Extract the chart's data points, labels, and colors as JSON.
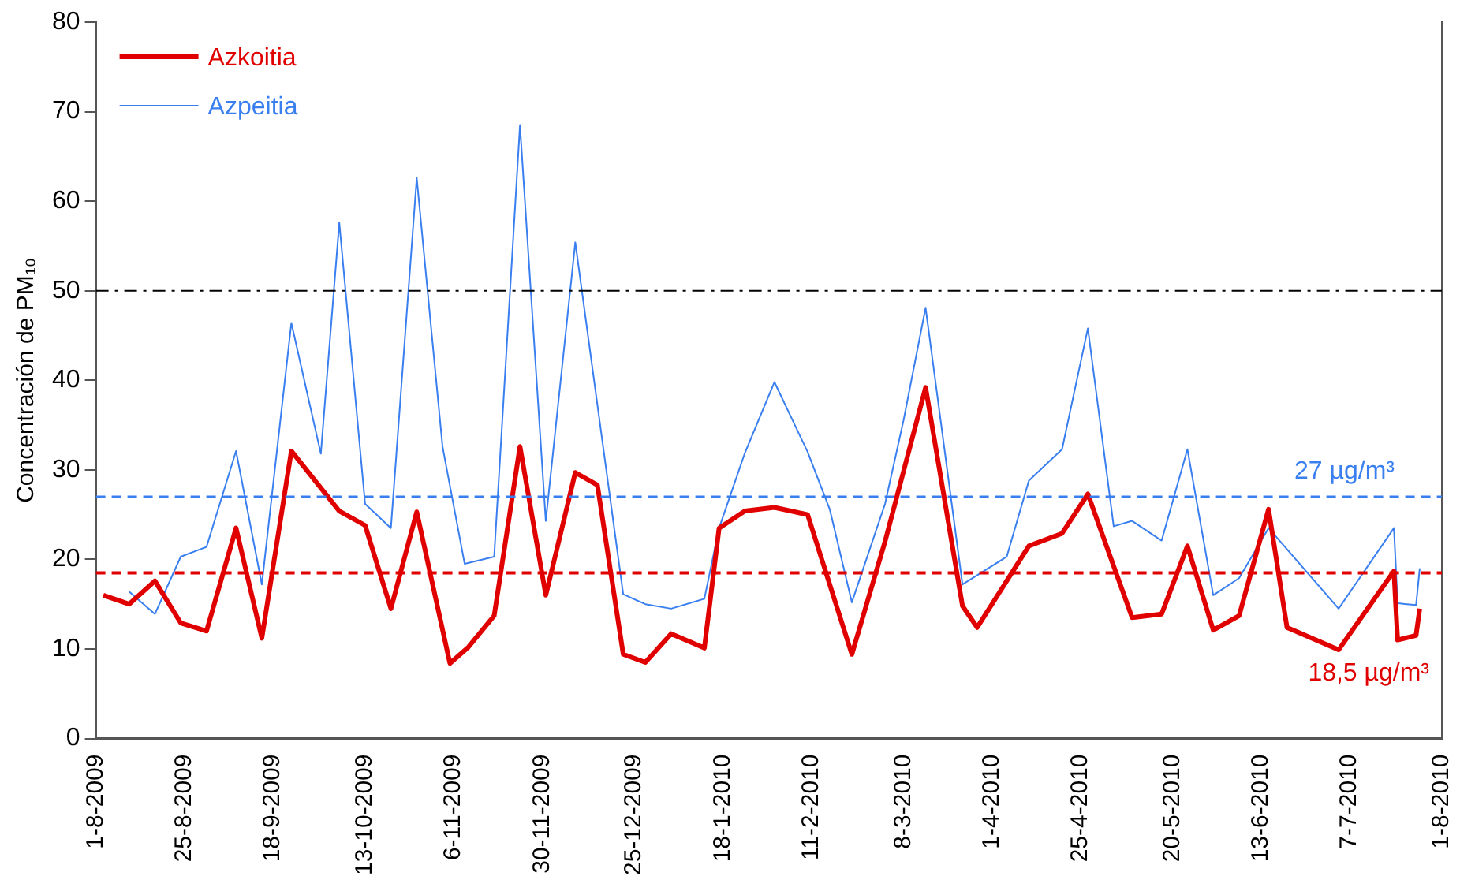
{
  "chart_data": {
    "type": "line",
    "ylabel": "Concentración de PM₁₀",
    "legend": "top left",
    "grid": false,
    "marker": "none",
    "xlim": [
      "2009-08-01",
      "2010-08-01"
    ],
    "xticks": [
      {
        "value": "2009-08-01",
        "label": "1-8-2009"
      },
      {
        "value": "2009-08-25",
        "label": "25-8-2009"
      },
      {
        "value": "2009-09-18",
        "label": "18-9-2009"
      },
      {
        "value": "2009-10-13",
        "label": "13-10-2009"
      },
      {
        "value": "2009-11-06",
        "label": "6-11-2009"
      },
      {
        "value": "2009-11-30",
        "label": "30-11-2009"
      },
      {
        "value": "2009-12-25",
        "label": "25-12-2009"
      },
      {
        "value": "2010-01-18",
        "label": "18-1-2010"
      },
      {
        "value": "2010-02-11",
        "label": "11-2-2010"
      },
      {
        "value": "2010-03-08",
        "label": "8-3-2010"
      },
      {
        "value": "2010-04-01",
        "label": "1-4-2010"
      },
      {
        "value": "2010-04-25",
        "label": "25-4-2010"
      },
      {
        "value": "2010-05-20",
        "label": "20-5-2010"
      },
      {
        "value": "2010-06-13",
        "label": "13-6-2010"
      },
      {
        "value": "2010-07-07",
        "label": "7-7-2010"
      },
      {
        "value": "2010-08-01",
        "label": "1-8-2010"
      }
    ],
    "ylim": [
      0,
      80
    ],
    "yticks": [
      0,
      10,
      20,
      30,
      40,
      50,
      60,
      70,
      80
    ],
    "series": [
      {
        "name": "Azkoitia",
        "color": "#e00000",
        "x": [
          "2009-08-03",
          "2009-08-10",
          "2009-08-17",
          "2009-08-24",
          "2009-08-31",
          "2009-09-08",
          "2009-09-15",
          "2009-09-23",
          "2009-10-06",
          "2009-10-13",
          "2009-10-20",
          "2009-10-27",
          "2009-11-05",
          "2009-11-10",
          "2009-11-17",
          "2009-11-24",
          "2009-12-01",
          "2009-12-09",
          "2009-12-15",
          "2009-12-22",
          "2009-12-28",
          "2010-01-04",
          "2010-01-13",
          "2010-01-17",
          "2010-01-24",
          "2010-02-01",
          "2010-02-10",
          "2010-02-22",
          "2010-03-03",
          "2010-03-14",
          "2010-03-24",
          "2010-03-28",
          "2010-04-11",
          "2010-04-20",
          "2010-04-27",
          "2010-05-09",
          "2010-05-17",
          "2010-05-24",
          "2010-05-31",
          "2010-06-07",
          "2010-06-15",
          "2010-06-20",
          "2010-07-04",
          "2010-07-19",
          "2010-07-20",
          "2010-07-25",
          "2010-07-26"
        ],
        "values": [
          16.0,
          15.0,
          17.6,
          12.9,
          12.0,
          23.5,
          11.2,
          32.1,
          25.4,
          23.8,
          14.5,
          25.3,
          8.4,
          10.2,
          13.7,
          32.6,
          16.0,
          29.7,
          28.3,
          9.4,
          8.5,
          11.7,
          10.1,
          23.5,
          25.4,
          25.8,
          25.0,
          9.4,
          22.0,
          39.2,
          14.8,
          12.4,
          21.5,
          22.9,
          27.3,
          13.5,
          13.9,
          21.5,
          12.1,
          13.7,
          25.6,
          12.4,
          9.9,
          18.7,
          11.0,
          11.5,
          14.5
        ]
      },
      {
        "name": "Azpeitia",
        "color": "#3a7ff0",
        "x": [
          "2009-08-10",
          "2009-08-17",
          "2009-08-24",
          "2009-08-31",
          "2009-09-08",
          "2009-09-15",
          "2009-09-23",
          "2009-10-01",
          "2009-10-06",
          "2009-10-13",
          "2009-10-20",
          "2009-10-27",
          "2009-11-03",
          "2009-11-09",
          "2009-11-17",
          "2009-11-24",
          "2009-12-01",
          "2009-12-09",
          "2009-12-22",
          "2009-12-28",
          "2010-01-04",
          "2010-01-13",
          "2010-01-17",
          "2010-01-24",
          "2010-02-01",
          "2010-02-10",
          "2010-02-16",
          "2010-02-22",
          "2010-03-03",
          "2010-03-08",
          "2010-03-14",
          "2010-03-24",
          "2010-04-05",
          "2010-04-11",
          "2010-04-20",
          "2010-04-27",
          "2010-05-04",
          "2010-05-09",
          "2010-05-17",
          "2010-05-24",
          "2010-05-31",
          "2010-06-07",
          "2010-06-15",
          "2010-07-04",
          "2010-07-19",
          "2010-07-20",
          "2010-07-25",
          "2010-07-26"
        ],
        "values": [
          16.4,
          13.9,
          20.3,
          21.4,
          32.1,
          17.2,
          46.4,
          31.8,
          57.6,
          26.2,
          23.5,
          62.6,
          32.6,
          19.5,
          20.3,
          68.5,
          24.3,
          55.4,
          16.1,
          15.0,
          14.5,
          15.6,
          23.5,
          31.9,
          39.8,
          32.0,
          25.6,
          15.2,
          26.2,
          35.5,
          48.1,
          17.2,
          20.3,
          28.8,
          32.3,
          45.8,
          23.7,
          24.3,
          22.1,
          32.3,
          16.0,
          17.9,
          23.5,
          14.5,
          23.5,
          15.1,
          14.9,
          19.0
        ]
      }
    ],
    "ref_lines": [
      {
        "axis": "y",
        "value": 50,
        "color": "#000000",
        "line_style": "dashdot"
      },
      {
        "axis": "y",
        "value": 27,
        "label": "27 µg/m³",
        "color": "#3a7ff0",
        "line_style": "dashed"
      },
      {
        "axis": "y",
        "value": 18.5,
        "label": "18,5 µg/m³",
        "color": "#e00000",
        "line_style": "dashed"
      }
    ]
  }
}
